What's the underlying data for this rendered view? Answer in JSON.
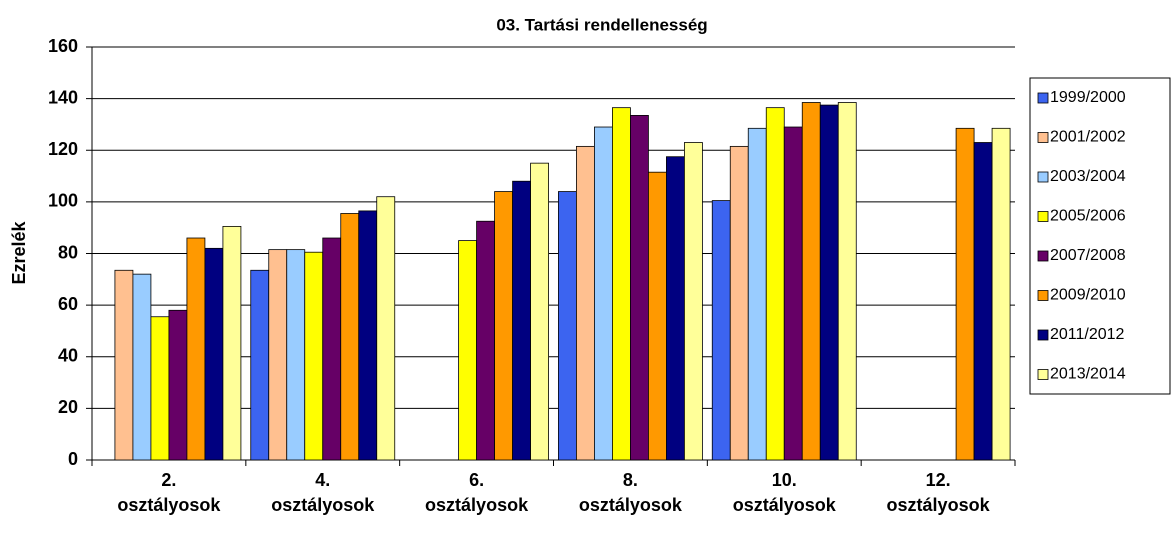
{
  "chart_data": {
    "type": "bar",
    "title": "03. Tartási  rendellenesség",
    "y_label": "Ezrelék",
    "categories": [
      "2.\nosztályosok",
      "4.\nosztályosok",
      "6.\nosztályosok",
      "8.\nosztályosok",
      "10.\nosztályosok",
      "12.\nosztályosok"
    ],
    "series": [
      {
        "name": "1999/2000",
        "color": "#3c64f0",
        "values": [
          null,
          73.5,
          null,
          104,
          100.5,
          null
        ]
      },
      {
        "name": "2001/2002",
        "color": "#ffc090",
        "values": [
          73.5,
          81.5,
          null,
          121.5,
          121.5,
          null
        ]
      },
      {
        "name": "2003/2004",
        "color": "#99ccff",
        "values": [
          72,
          81.5,
          null,
          129,
          128.5,
          null
        ]
      },
      {
        "name": "2005/2006",
        "color": "#ffff00",
        "values": [
          55.5,
          80.5,
          85,
          136.5,
          136.5,
          null
        ]
      },
      {
        "name": "2007/2008",
        "color": "#660066",
        "values": [
          58,
          86,
          92.5,
          133.5,
          129,
          null
        ]
      },
      {
        "name": "2009/2010",
        "color": "#ff9900",
        "values": [
          86,
          95.5,
          104,
          111.5,
          138.5,
          128.5
        ]
      },
      {
        "name": "2011/2012",
        "color": "#000080",
        "values": [
          82,
          96.5,
          108,
          117.5,
          137.5,
          123
        ]
      },
      {
        "name": "2013/2014",
        "color": "#ffff99",
        "values": [
          90.5,
          102,
          115,
          123,
          138.5,
          128.5
        ]
      }
    ],
    "ylim": [
      0,
      160
    ],
    "yticks": [
      0,
      20,
      40,
      60,
      80,
      100,
      120,
      140,
      160
    ],
    "grid": true,
    "legend": "right"
  }
}
